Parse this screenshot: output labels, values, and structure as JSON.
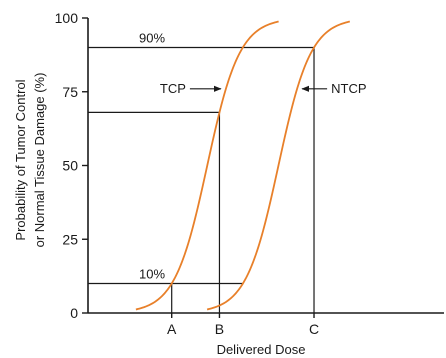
{
  "chart_data": {
    "type": "line",
    "title": "",
    "xlabel": "Delivered Dose",
    "ylabel": [
      "Probability of Tumor Control",
      "or Normal Tissue Damage (%)"
    ],
    "ylim": [
      0,
      100
    ],
    "yticks": [
      {
        "value": 0,
        "label": "0",
        "color": "#1a1a1a"
      },
      {
        "value": 25,
        "label": "25",
        "color": "#1a1a1a"
      },
      {
        "value": 50,
        "label": "50",
        "color": "#1a1a1a"
      },
      {
        "value": 75,
        "label": "75",
        "color": "#b00000"
      },
      {
        "value": 100,
        "label": "100",
        "color": "#1a1a1a"
      }
    ],
    "xticks": [
      {
        "label": "A"
      },
      {
        "label": "B"
      },
      {
        "label": "C"
      }
    ],
    "series": [
      {
        "name": "TCP",
        "center": 0.335,
        "color": "#e8802a"
      },
      {
        "name": "NTCP",
        "center": 0.535,
        "color": "#e8802a"
      }
    ],
    "reference_levels": [
      {
        "value": 90,
        "label": "90%"
      },
      {
        "value": 68,
        "label": ""
      },
      {
        "value": 10,
        "label": "10%"
      }
    ],
    "curve_labels": [
      {
        "text": "TCP",
        "series": "TCP",
        "arrow": "right"
      },
      {
        "text": "NTCP",
        "series": "NTCP",
        "arrow": "left"
      }
    ],
    "grid": false
  }
}
